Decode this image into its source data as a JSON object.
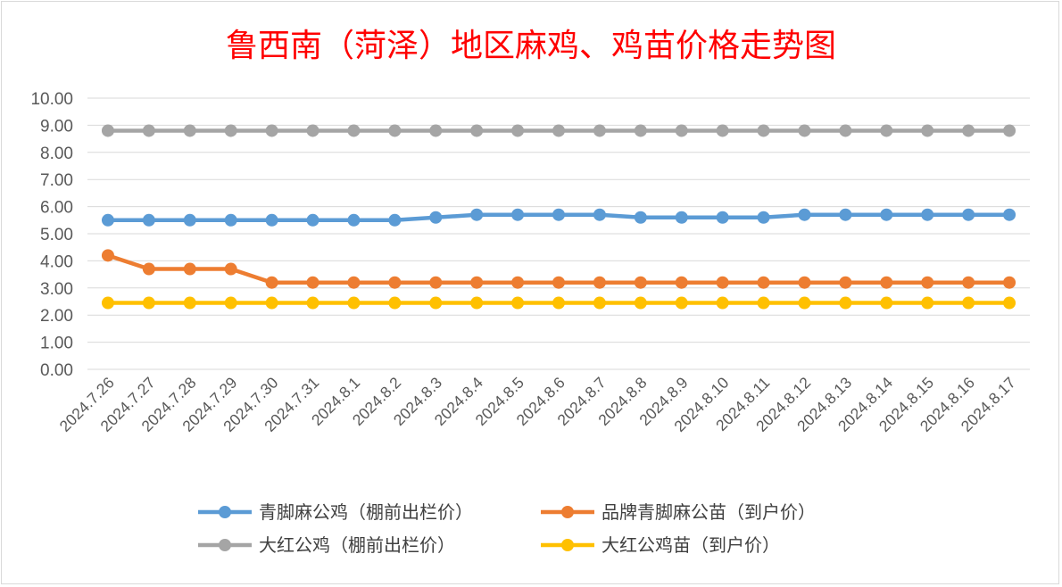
{
  "chart_data": {
    "type": "line",
    "title": "鲁西南（菏泽）地区麻鸡、鸡苗价格走势图",
    "xlabel": "",
    "ylabel": "",
    "ylim": [
      0,
      10
    ],
    "y_ticks": [
      "0.00",
      "1.00",
      "2.00",
      "3.00",
      "4.00",
      "5.00",
      "6.00",
      "7.00",
      "8.00",
      "9.00",
      "10.00"
    ],
    "grid": true,
    "legend_position": "bottom",
    "categories": [
      "2024.7.26",
      "2024.7.27",
      "2024.7.28",
      "2024.7.29",
      "2024.7.30",
      "2024.7.31",
      "2024.8.1",
      "2024.8.2",
      "2024.8.3",
      "2024.8.4",
      "2024.8.5",
      "2024.8.6",
      "2024.8.7",
      "2024.8.8",
      "2024.8.9",
      "2024.8.10",
      "2024.8.11",
      "2024.8.12",
      "2024.8.13",
      "2024.8.14",
      "2024.8.15",
      "2024.8.16",
      "2024.8.17"
    ],
    "series": [
      {
        "name": "青脚麻公鸡（棚前出栏价）",
        "color": "#5b9bd5",
        "values": [
          5.5,
          5.5,
          5.5,
          5.5,
          5.5,
          5.5,
          5.5,
          5.5,
          5.6,
          5.7,
          5.7,
          5.7,
          5.7,
          5.6,
          5.6,
          5.6,
          5.6,
          5.7,
          5.7,
          5.7,
          5.7,
          5.7,
          5.7
        ]
      },
      {
        "name": "品牌青脚麻公苗（到户价）",
        "color": "#ed7d31",
        "values": [
          4.2,
          3.7,
          3.7,
          3.7,
          3.2,
          3.2,
          3.2,
          3.2,
          3.2,
          3.2,
          3.2,
          3.2,
          3.2,
          3.2,
          3.2,
          3.2,
          3.2,
          3.2,
          3.2,
          3.2,
          3.2,
          3.2,
          3.2
        ]
      },
      {
        "name": "大红公鸡（棚前出栏价）",
        "color": "#a5a5a5",
        "values": [
          8.8,
          8.8,
          8.8,
          8.8,
          8.8,
          8.8,
          8.8,
          8.8,
          8.8,
          8.8,
          8.8,
          8.8,
          8.8,
          8.8,
          8.8,
          8.8,
          8.8,
          8.8,
          8.8,
          8.8,
          8.8,
          8.8,
          8.8
        ]
      },
      {
        "name": "大红公鸡苗（到户价）",
        "color": "#ffc000",
        "values": [
          2.45,
          2.45,
          2.45,
          2.45,
          2.45,
          2.45,
          2.45,
          2.45,
          2.45,
          2.45,
          2.45,
          2.45,
          2.45,
          2.45,
          2.45,
          2.45,
          2.45,
          2.45,
          2.45,
          2.45,
          2.45,
          2.45,
          2.45
        ]
      }
    ]
  }
}
